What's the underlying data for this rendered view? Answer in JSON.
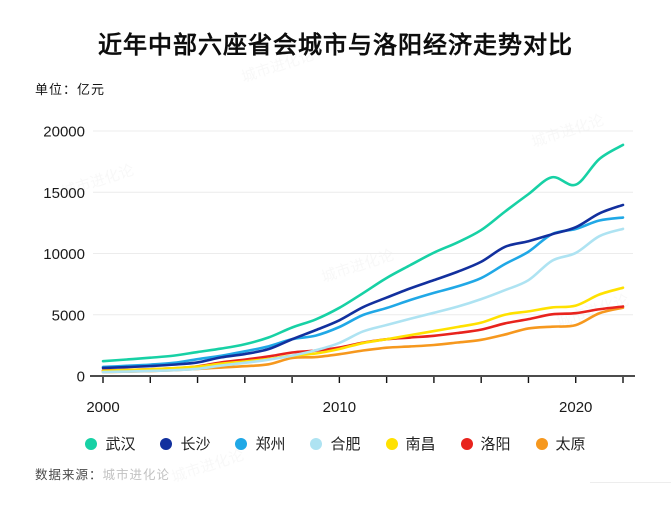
{
  "header": {
    "title": "近年中部六座省会城市与洛阳经济走势对比",
    "unit": "单位：亿元"
  },
  "footer": {
    "source_label": "数据来源：",
    "source_value": "城市进化论"
  },
  "watermark": "城市进化论",
  "colors": {
    "axis": "#111111",
    "grid": "#ececec",
    "tick_text": "#1a1a1a"
  },
  "chart_data": {
    "type": "line",
    "title": "近年中部六座省会城市与洛阳经济走势对比",
    "unit": "亿元",
    "x_range": [
      2000,
      2022
    ],
    "x": [
      2000,
      2001,
      2002,
      2003,
      2004,
      2005,
      2006,
      2007,
      2008,
      2009,
      2010,
      2011,
      2012,
      2013,
      2014,
      2015,
      2016,
      2017,
      2018,
      2019,
      2020,
      2021,
      2022
    ],
    "xtick_interval": 2,
    "xtick_labels": [
      2000,
      2010,
      2020
    ],
    "yticks": [
      0,
      5000,
      10000,
      15000,
      20000
    ],
    "ylim": [
      0,
      20000
    ],
    "grid": "horizontal",
    "legend_position": "bottom",
    "series": [
      {
        "id": "wuhan",
        "name": "武汉",
        "color": "#17d1a5",
        "values": [
          1207,
          1348,
          1493,
          1662,
          1956,
          2238,
          2591,
          3142,
          3960,
          4621,
          5566,
          6762,
          8004,
          9051,
          10069,
          10906,
          11913,
          13410,
          14847,
          16223,
          15616,
          17717,
          18866
        ]
      },
      {
        "id": "changsha",
        "name": "长沙",
        "color": "#12309e",
        "values": [
          656,
          728,
          813,
          929,
          1109,
          1520,
          1791,
          2190,
          3001,
          3745,
          4547,
          5619,
          6400,
          7153,
          7825,
          8510,
          9324,
          10536,
          11003,
          11574,
          12143,
          13271,
          13966
        ]
      },
      {
        "id": "zhengzhou",
        "name": "郑州",
        "color": "#20a8e6",
        "values": [
          738,
          828,
          928,
          1074,
          1375,
          1650,
          2014,
          2421,
          3004,
          3300,
          4000,
          4980,
          5547,
          6202,
          6783,
          7315,
          7994,
          9130,
          10143,
          11590,
          12003,
          12691,
          12935
        ]
      },
      {
        "id": "hefei",
        "name": "合肥",
        "color": "#aee3f2",
        "values": [
          325,
          364,
          413,
          478,
          589,
          853,
          1074,
          1334,
          1665,
          2102,
          2702,
          3637,
          4164,
          4672,
          5158,
          5660,
          6274,
          7003,
          7822,
          9409,
          10046,
          11413,
          12013
        ]
      },
      {
        "id": "nanchang",
        "name": "南昌",
        "color": "#ffe100",
        "values": [
          428,
          485,
          552,
          640,
          770,
          1008,
          1185,
          1390,
          1660,
          1838,
          2207,
          2689,
          3001,
          3336,
          3668,
          4000,
          4355,
          5003,
          5275,
          5596,
          5746,
          6651,
          7204
        ]
      },
      {
        "id": "luoyang",
        "name": "洛阳",
        "color": "#e8231d",
        "values": [
          453,
          497,
          545,
          624,
          786,
          1112,
          1332,
          1596,
          1920,
          2075,
          2321,
          2723,
          3001,
          3141,
          3284,
          3509,
          3783,
          4290,
          4640,
          5035,
          5128,
          5447,
          5675
        ]
      },
      {
        "id": "taiyuan",
        "name": "太原",
        "color": "#f6981e",
        "values": [
          325,
          359,
          404,
          477,
          577,
          690,
          798,
          953,
          1468,
          1545,
          1778,
          2080,
          2311,
          2412,
          2531,
          2735,
          2955,
          3382,
          3884,
          4028,
          4153,
          5121,
          5571
        ]
      }
    ]
  }
}
